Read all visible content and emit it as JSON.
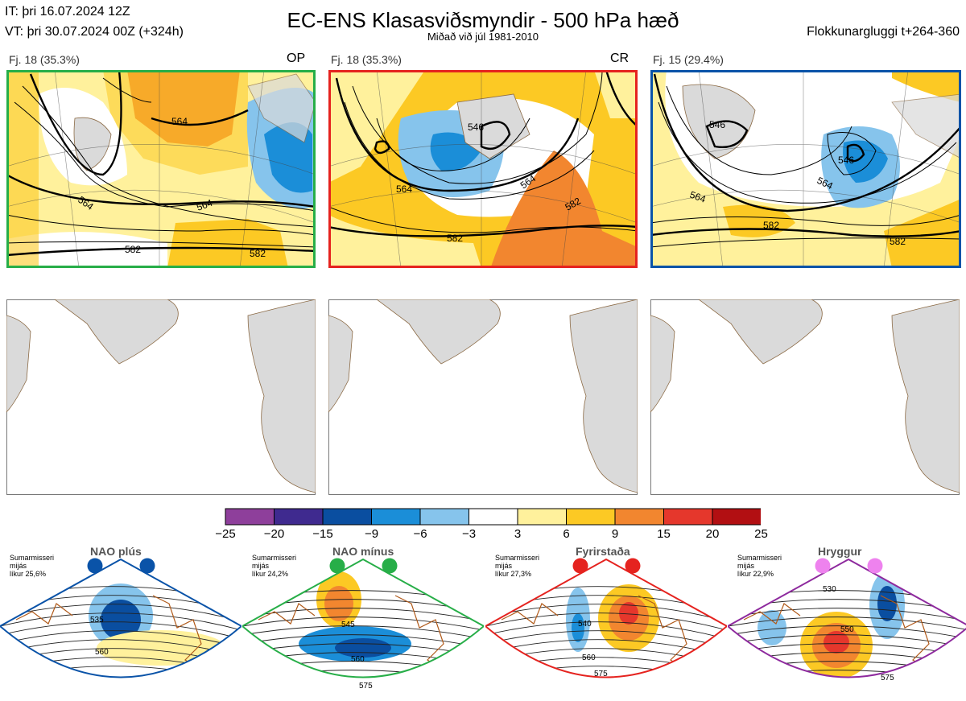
{
  "header": {
    "it_line": "IT: þri 16.07.2024 12Z",
    "vt_line": "VT: þri 30.07.2024 00Z  (+324h)",
    "title": "EC-ENS Klasasviðsmyndir - 500 hPa hæð",
    "subtitle": "Miðað við júl 1981-2010",
    "window": "Flokkunargluggi t+264-360"
  },
  "clusters": [
    {
      "label": "Fj. 18 (35.3%)",
      "code": "OP",
      "border_color": "#27ae48",
      "contour_labels": [
        "564",
        "564",
        "564",
        "582",
        "582"
      ]
    },
    {
      "label": "Fj. 18 (35.3%)",
      "code": "CR",
      "border_color": "#e5231f",
      "contour_labels": [
        "546",
        "564",
        "564",
        "582",
        "582"
      ]
    },
    {
      "label": "Fj. 15 (29.4%)",
      "code": "",
      "border_color": "#0a53a8",
      "contour_labels": [
        "546",
        "546",
        "564",
        "564",
        "582",
        "582"
      ]
    }
  ],
  "colorbar": {
    "ticks": [
      "−25",
      "−20",
      "−15",
      "−9",
      "−6",
      "−3",
      "3",
      "6",
      "9",
      "15",
      "20",
      "25"
    ],
    "colors": [
      "#8e3f9b",
      "#3f2a8f",
      "#0a4ea0",
      "#1b8ed8",
      "#86c4ec",
      "#ffffff",
      "#fff19c",
      "#fcc924",
      "#f2862f",
      "#e5372c",
      "#b20f12"
    ]
  },
  "patterns": [
    {
      "name": "NAO plús",
      "season": "Sumarmisseri",
      "median": "mijás",
      "likelihood": "líkur 25,6%",
      "dot_color": "#0a53a8",
      "border_color": "#0a53a8",
      "contour_labels": [
        "535",
        "560"
      ]
    },
    {
      "name": "NAO mínus",
      "season": "Sumarmisseri",
      "median": "mijás",
      "likelihood": "líkur 24,2%",
      "dot_color": "#27ae48",
      "border_color": "#27ae48",
      "contour_labels": [
        "545",
        "560",
        "575"
      ]
    },
    {
      "name": "Fyrirstaða",
      "season": "Sumarmisseri",
      "median": "mijás",
      "likelihood": "líkur 27,3%",
      "dot_color": "#e5231f",
      "border_color": "#e5231f",
      "contour_labels": [
        "540",
        "560",
        "575"
      ]
    },
    {
      "name": "Hryggur",
      "season": "Sumarmisseri",
      "median": "mijás",
      "likelihood": "líkur 22,9%",
      "dot_color": "#ee82ee",
      "border_color": "#8e2a9e",
      "contour_labels": [
        "530",
        "550",
        "575"
      ]
    }
  ]
}
